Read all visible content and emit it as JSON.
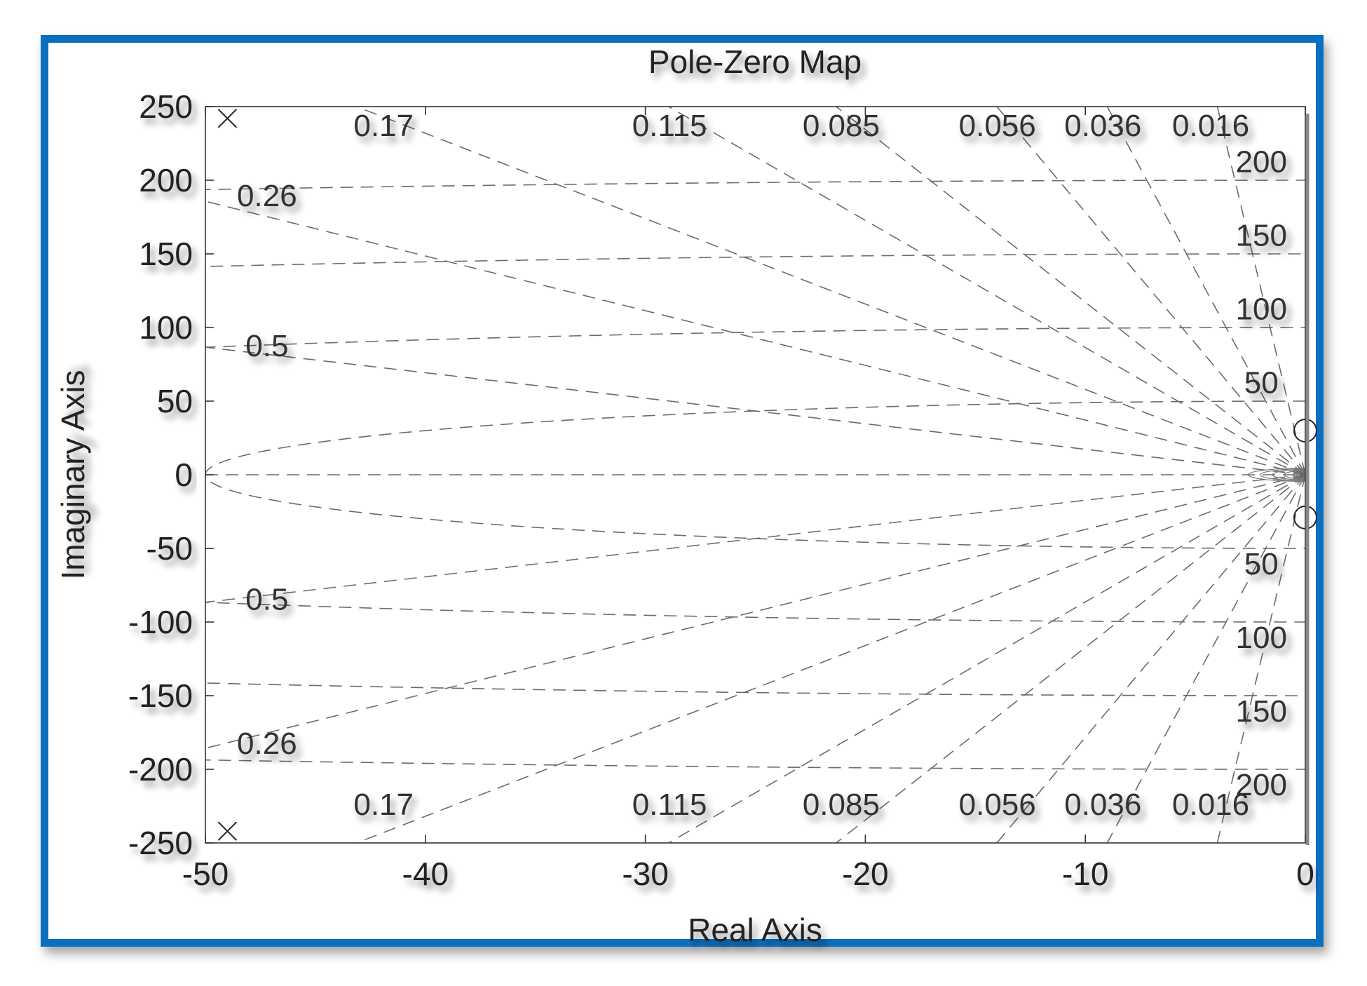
{
  "chart_data": {
    "type": "scatter",
    "title": "Pole-Zero Map",
    "xlabel": "Real Axis",
    "ylabel": "Imaginary Axis",
    "xlim": [
      -50,
      0
    ],
    "ylim": [
      -250,
      250
    ],
    "x_ticks": [
      -50,
      -40,
      -30,
      -20,
      -10,
      0
    ],
    "y_ticks": [
      250,
      200,
      150,
      100,
      50,
      0,
      -50,
      -100,
      -150,
      -200,
      -250
    ],
    "grid": true,
    "series": [
      {
        "marker": "x",
        "points": [
          [
            -49,
            242
          ],
          [
            -49,
            -242
          ]
        ]
      },
      {
        "marker": "o",
        "points": [
          [
            0,
            30
          ],
          [
            0,
            -29
          ]
        ]
      }
    ],
    "damping_grid": {
      "values": [
        0.016,
        0.036,
        0.056,
        0.085,
        0.115,
        0.17,
        0.26,
        0.5
      ],
      "labels_top": [
        "0.17",
        "0.115",
        "0.085",
        "0.056",
        "0.036",
        "0.016"
      ],
      "labels_bottom": [
        "0.17",
        "0.115",
        "0.085",
        "0.056",
        "0.036",
        "0.016"
      ],
      "labels_left_upper": [
        "0.26",
        "0.5"
      ],
      "labels_left_lower": [
        "0.5",
        "0.26"
      ]
    },
    "frequency_grid": {
      "values": [
        50,
        100,
        150,
        200
      ],
      "labels_upper": [
        "200",
        "150",
        "100",
        "50"
      ],
      "labels_lower": [
        "50",
        "100",
        "150",
        "200"
      ]
    }
  }
}
